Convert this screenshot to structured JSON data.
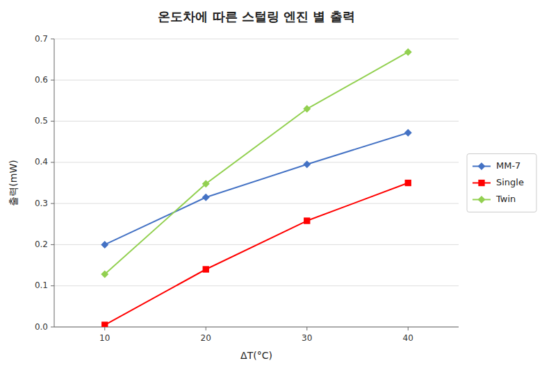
{
  "chart_data": {
    "type": "line",
    "title": "온도차에 따른 스털링 엔진 별 출력",
    "x_label": "ΔT(°C)",
    "y_label": "출력(mW)",
    "x": [
      10,
      20,
      30,
      40
    ],
    "series": [
      {
        "name": "MM-7",
        "color": "#4472C4",
        "marker": "diamond",
        "values": [
          0.2,
          0.315,
          0.395,
          0.472
        ]
      },
      {
        "name": "Single",
        "color": "#FF0000",
        "marker": "square",
        "values": [
          0.005,
          0.14,
          0.258,
          0.35
        ]
      },
      {
        "name": "Twin",
        "color": "#92D050",
        "marker": "diamond",
        "values": [
          0.128,
          0.348,
          0.53,
          0.668
        ]
      }
    ],
    "xlim": [
      5,
      45
    ],
    "ylim": [
      0,
      0.7
    ],
    "xticks": [
      10,
      20,
      30,
      40
    ],
    "yticks": [
      {
        "value": 0,
        "label": "0.0"
      },
      0.1,
      0.2,
      0.3,
      0.4,
      0.5,
      0.6,
      0.7
    ],
    "grid": true,
    "legend": "right"
  }
}
